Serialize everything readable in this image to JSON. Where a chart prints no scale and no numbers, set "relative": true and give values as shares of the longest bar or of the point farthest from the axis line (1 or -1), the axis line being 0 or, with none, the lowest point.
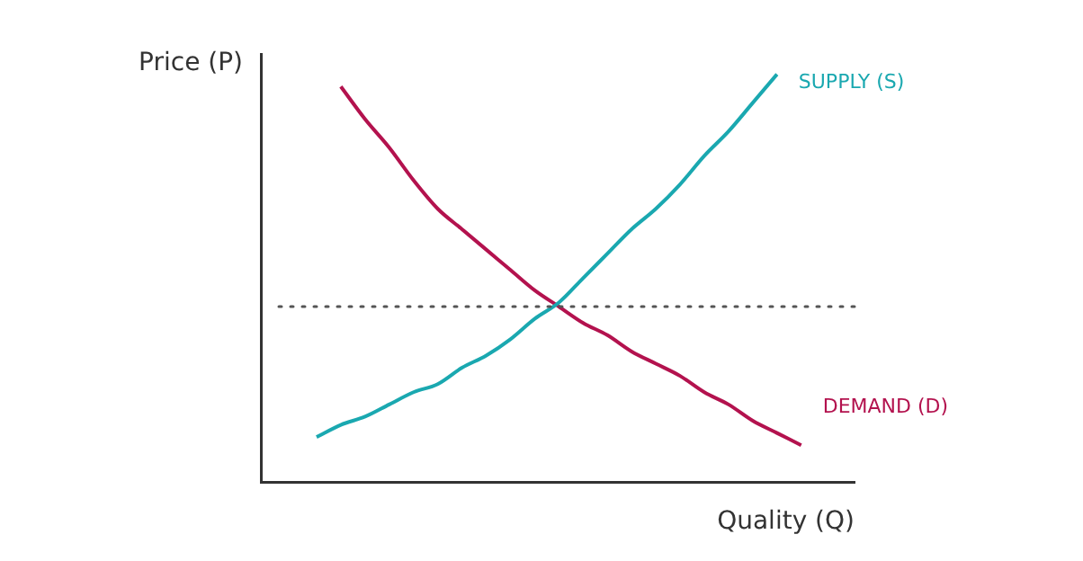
{
  "chart_data": {
    "type": "line",
    "relative": true,
    "xlabel": "Quality (Q)",
    "ylabel": "Price (P)",
    "categories": [
      null,
      null,
      null,
      null,
      null,
      null,
      null,
      null,
      null,
      null,
      null,
      null,
      null,
      null,
      null,
      null,
      null,
      null,
      null,
      null,
      null
    ],
    "series": [
      {
        "name": "SUPPLY (S)",
        "color": "#1aa8b0",
        "values": [
          0.11,
          0.14,
          0.16,
          0.19,
          0.22,
          0.24,
          0.28,
          0.31,
          0.35,
          0.4,
          0.44,
          0.5,
          0.56,
          0.62,
          0.67,
          0.73,
          0.8,
          0.86,
          0.93,
          1.0,
          null
        ]
      },
      {
        "name": "DEMAND (D)",
        "color": "#b3124e",
        "values": [
          null,
          0.97,
          0.89,
          0.82,
          0.74,
          0.67,
          0.62,
          0.57,
          0.52,
          0.47,
          0.43,
          0.39,
          0.36,
          0.32,
          0.29,
          0.26,
          0.22,
          0.19,
          0.15,
          0.12,
          0.09
        ]
      }
    ],
    "ref_lines": [
      {
        "axis": "y",
        "value": 0.43,
        "color": "#555555",
        "line_style": "dotted"
      }
    ],
    "grid": false,
    "legend": false,
    "marker": "none",
    "line_style": "solid"
  }
}
